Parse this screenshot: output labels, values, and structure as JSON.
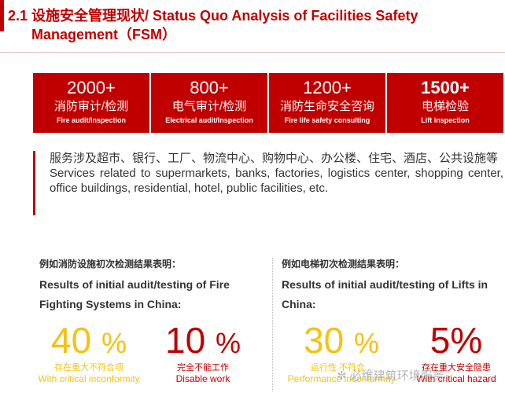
{
  "title": {
    "line1": "2.1 设施安全管理现状/ Status Quo Analysis  of Facilities Safety",
    "line2": "Management（FSM）"
  },
  "stats": [
    {
      "number": "2000+",
      "cn": "消防审计/检测",
      "en": "Fire audit/Inspection"
    },
    {
      "number": "800+",
      "cn": "电气审计/检测",
      "en": "Electrical audit/Inspection"
    },
    {
      "number": "1200+",
      "cn": "消防生命安全咨询",
      "en": "Fire life safety consulting"
    },
    {
      "number": "1500+",
      "cn": "电梯检验",
      "en": "Lift inspection"
    }
  ],
  "services": {
    "cn": "服务涉及超市、银行、工厂、物流中心、购物中心、办公楼、住宅、酒店、公共设施等",
    "en": "Services related to supermarkets, banks, factories, logistics center, shopping center, office buildings, residential, hotel, public facilities, etc."
  },
  "left_panel": {
    "cn": "例如消防设施初次检测结果表明：",
    "en": "Results of initial audit/testing of Fire Fighting Systems in China:",
    "stat1": {
      "number": "40",
      "unit": "%",
      "cn": "存在重大不符合项",
      "en": "With critical inconformity"
    },
    "stat2": {
      "number": "10",
      "unit": "%",
      "cn": "完全不能工作",
      "en": "Disable work"
    }
  },
  "right_panel": {
    "cn": "例如电梯初次检测结果表明：",
    "en": "Results of initial audit/testing of Lifts in China:",
    "stat1": {
      "number": "30",
      "unit": "%",
      "cn": "运行性 不符合...",
      "en": "Performance inconformity"
    },
    "stat2": {
      "number": "5%",
      "unit": "",
      "cn": "存在重大安全隐患",
      "en": "With critical hazard"
    }
  },
  "watermark": "必维建筑环境服务",
  "colors": {
    "accent": "#c00000",
    "yellow": "#f5c211",
    "text": "#333333"
  }
}
